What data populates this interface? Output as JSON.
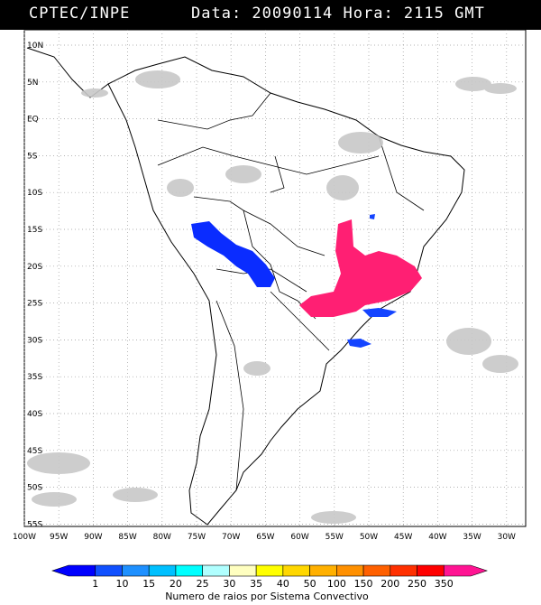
{
  "header": {
    "source": "CPTEC/INPE",
    "datetime": "Data: 20090114 Hora: 2115 GMT"
  },
  "map": {
    "lat_labels": [
      "10N",
      "5N",
      "EQ",
      "5S",
      "10S",
      "15S",
      "20S",
      "25S",
      "30S",
      "35S",
      "40S",
      "45S",
      "50S",
      "55S"
    ],
    "lon_labels": [
      "100W",
      "95W",
      "90W",
      "85W",
      "80W",
      "75W",
      "70W",
      "65W",
      "60W",
      "55W",
      "50W",
      "45W",
      "40W",
      "35W",
      "30W"
    ],
    "lat_range": [
      10,
      -55
    ],
    "lon_range": [
      -100,
      -30
    ]
  },
  "legend": {
    "title": "Numero de raios por Sistema Convectivo",
    "ticks": [
      "1",
      "10",
      "15",
      "20",
      "25",
      "30",
      "35",
      "40",
      "50",
      "100",
      "150",
      "200",
      "250",
      "350"
    ],
    "colors": [
      "#0000ff",
      "#1050ff",
      "#1e90ff",
      "#00c0ff",
      "#00ffff",
      "#b0ffff",
      "#ffffc0",
      "#ffff00",
      "#ffd700",
      "#ffb000",
      "#ff9000",
      "#ff6000",
      "#ff3000",
      "#ff0000",
      "#ff1493"
    ]
  }
}
